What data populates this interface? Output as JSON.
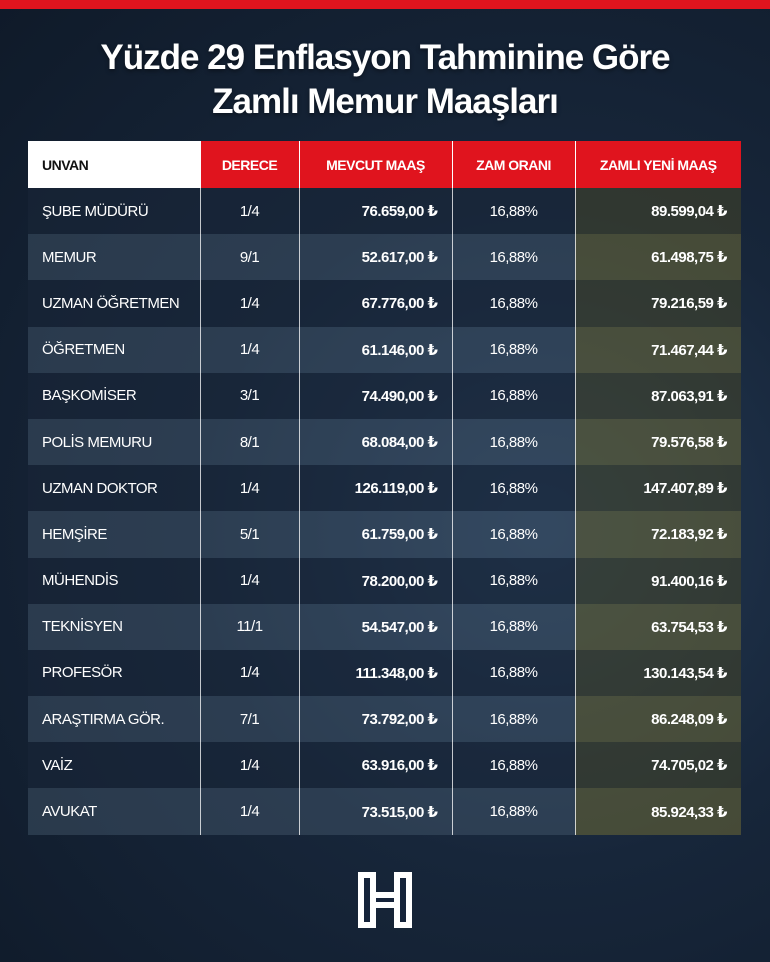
{
  "header": {
    "title_line1": "Yüzde 29 Enflasyon Tahminine Göre",
    "title_line2": "Zamlı Memur Maaşları"
  },
  "table": {
    "columns": [
      "UNVAN",
      "DERECE",
      "MEVCUT MAAŞ",
      "ZAM ORANI",
      "ZAMLI YENİ MAAŞ"
    ],
    "rows": [
      [
        "ŞUBE MÜDÜRÜ",
        "1/4",
        "76.659,00 ₺",
        "16,88%",
        "89.599,04 ₺"
      ],
      [
        "MEMUR",
        "9/1",
        "52.617,00 ₺",
        "16,88%",
        "61.498,75 ₺"
      ],
      [
        "UZMAN ÖĞRETMEN",
        "1/4",
        "67.776,00 ₺",
        "16,88%",
        "79.216,59 ₺"
      ],
      [
        "ÖĞRETMEN",
        "1/4",
        "61.146,00 ₺",
        "16,88%",
        "71.467,44 ₺"
      ],
      [
        "BAŞKOMİSER",
        "3/1",
        "74.490,00 ₺",
        "16,88%",
        "87.063,91 ₺"
      ],
      [
        "POLİS MEMURU",
        "8/1",
        "68.084,00 ₺",
        "16,88%",
        "79.576,58 ₺"
      ],
      [
        "UZMAN DOKTOR",
        "1/4",
        "126.119,00 ₺",
        "16,88%",
        "147.407,89 ₺"
      ],
      [
        "HEMŞİRE",
        "5/1",
        "61.759,00 ₺",
        "16,88%",
        "72.183,92 ₺"
      ],
      [
        "MÜHENDİS",
        "1/4",
        "78.200,00 ₺",
        "16,88%",
        "91.400,16 ₺"
      ],
      [
        "TEKNİSYEN",
        "11/1",
        "54.547,00 ₺",
        "16,88%",
        "63.754,53 ₺"
      ],
      [
        "PROFESÖR",
        "1/4",
        "111.348,00 ₺",
        "16,88%",
        "130.143,54 ₺"
      ],
      [
        "ARAŞTIRMA GÖR.",
        "7/1",
        "73.792,00 ₺",
        "16,88%",
        "86.248,09 ₺"
      ],
      [
        "VAİZ",
        "1/4",
        "63.916,00 ₺",
        "16,88%",
        "74.705,02 ₺"
      ],
      [
        "AVUKAT",
        "1/4",
        "73.515,00 ₺",
        "16,88%",
        "85.924,33 ₺"
      ]
    ]
  }
}
